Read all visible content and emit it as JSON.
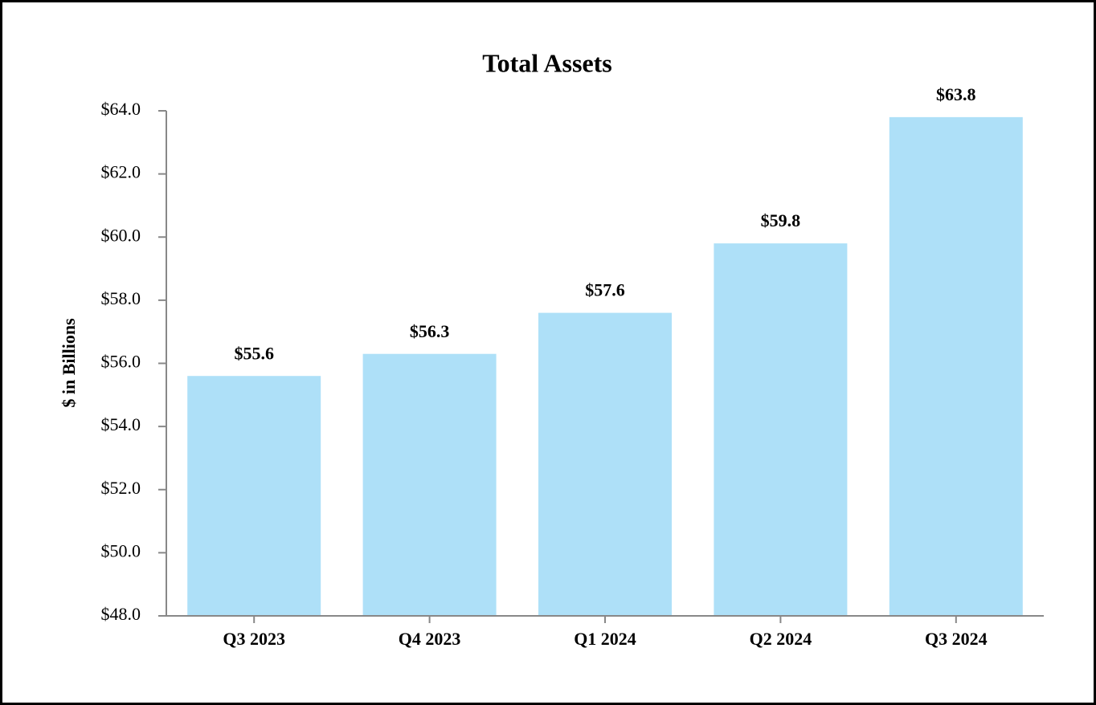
{
  "chart_data": {
    "type": "bar",
    "title": "Total Assets",
    "y_label": "$ in Billions",
    "categories": [
      "Q3 2023",
      "Q4 2023",
      "Q1 2024",
      "Q2 2024",
      "Q3 2024"
    ],
    "values": [
      55.6,
      56.3,
      57.6,
      59.8,
      63.8
    ],
    "value_labels": [
      "$55.6",
      "$56.3",
      "$57.6",
      "$59.8",
      "$63.8"
    ],
    "color": "#aee0f8",
    "ylim": [
      48,
      64
    ],
    "yticks": [
      {
        "value": 48,
        "label": "$48.0"
      },
      {
        "value": 50,
        "label": "$50.0"
      },
      {
        "value": 52,
        "label": "$52.0"
      },
      {
        "value": 54,
        "label": "$54.0"
      },
      {
        "value": 56,
        "label": "$56.0"
      },
      {
        "value": 58,
        "label": "$58.0"
      },
      {
        "value": 60,
        "label": "$60.0"
      },
      {
        "value": 62,
        "label": "$62.0"
      },
      {
        "value": 64,
        "label": "$64.0"
      }
    ],
    "grid": false
  }
}
